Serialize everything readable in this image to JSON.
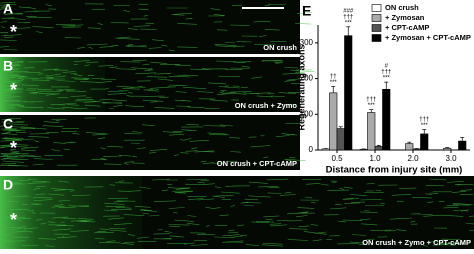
{
  "panels": [
    {
      "letter": "A",
      "label": "ON crush",
      "marker": "*"
    },
    {
      "letter": "B",
      "label": "ON crush + Zymo",
      "marker": "*"
    },
    {
      "letter": "C",
      "label": "ON crush + CPT-cAMP",
      "marker": "*"
    },
    {
      "letter": "D",
      "label": "ON crush + Zymo + CPT-cAMP",
      "marker": "*"
    }
  ],
  "chart_data": {
    "type": "bar",
    "panel_letter": "E",
    "x_label": "Distance from injury site (mm)",
    "y_label": "Regenerating axons",
    "categories": [
      "0.5",
      "1.0",
      "2.0",
      "3.0"
    ],
    "ylim": [
      0,
      350
    ],
    "yticks": [
      0,
      100,
      200,
      300
    ],
    "series": [
      {
        "name": "ON crush",
        "color": "#ffffff",
        "values": [
          3,
          2,
          0,
          0
        ],
        "errors": [
          1,
          1,
          0,
          0
        ],
        "significance": [
          null,
          null,
          null,
          null
        ]
      },
      {
        "name": "+ Zymosan",
        "color": "#aaaaaa",
        "values": [
          160,
          105,
          18,
          5
        ],
        "errors": [
          18,
          8,
          4,
          2
        ],
        "significance": [
          [
            "††",
            "***"
          ],
          [
            "†††",
            "***"
          ],
          null,
          null
        ]
      },
      {
        "name": "+ CPT-cAMP",
        "color": "#555555",
        "values": [
          60,
          10,
          3,
          0
        ],
        "errors": [
          5,
          3,
          1,
          0
        ],
        "significance": [
          null,
          null,
          null,
          null
        ]
      },
      {
        "name": "+ Zymosan + CPT-cAMP",
        "color": "#000000",
        "values": [
          320,
          170,
          45,
          25
        ],
        "errors": [
          25,
          20,
          12,
          10
        ],
        "significance": [
          [
            "###",
            "†††",
            "***"
          ],
          [
            "#",
            "†††",
            "***"
          ],
          [
            "†††",
            "***"
          ],
          null
        ]
      }
    ]
  }
}
